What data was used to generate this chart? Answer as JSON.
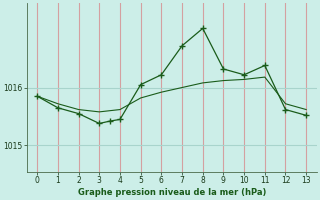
{
  "xlabel": "Graphe pression niveau de la mer (hPa)",
  "bg_color": "#cceee8",
  "vgrid_color": "#d4a0a0",
  "hgrid_color": "#a8d4cc",
  "line_color": "#1a5c1a",
  "xlim": [
    -0.5,
    13.5
  ],
  "ylim": [
    1014.55,
    1017.45
  ],
  "yticks": [
    1015,
    1016
  ],
  "xticks": [
    0,
    1,
    2,
    3,
    4,
    5,
    6,
    7,
    8,
    9,
    10,
    11,
    12,
    13
  ],
  "series1_x": [
    0,
    1,
    2,
    3,
    4,
    5,
    6,
    7,
    8,
    9,
    10,
    11,
    12,
    13
  ],
  "series1_y": [
    1015.85,
    1015.72,
    1015.62,
    1015.58,
    1015.62,
    1015.82,
    1015.92,
    1016.0,
    1016.08,
    1016.12,
    1016.14,
    1016.18,
    1015.72,
    1015.62
  ],
  "series2_x": [
    0,
    1,
    2,
    3,
    3.5,
    4,
    5,
    6,
    7,
    8,
    9,
    10,
    11,
    12,
    13
  ],
  "series2_y": [
    1015.85,
    1015.65,
    1015.55,
    1015.38,
    1015.42,
    1015.45,
    1016.05,
    1016.22,
    1016.72,
    1017.02,
    1016.32,
    1016.22,
    1016.38,
    1015.62,
    1015.52
  ]
}
